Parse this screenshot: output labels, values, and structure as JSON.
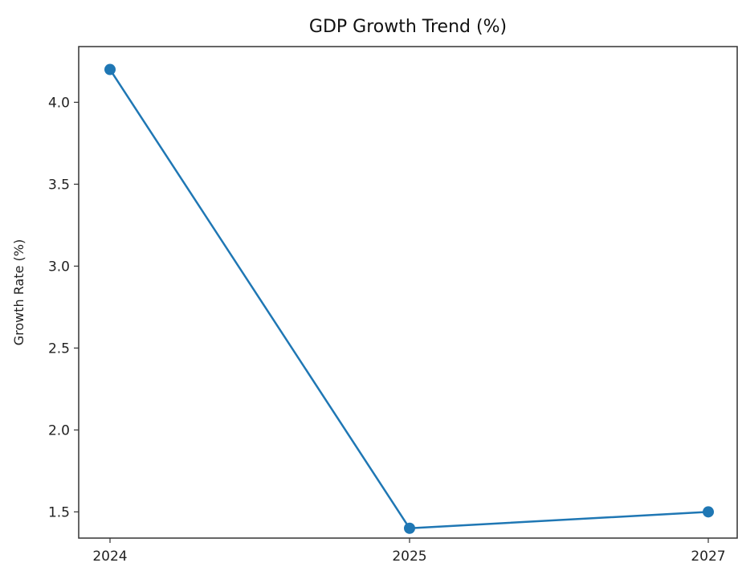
{
  "chart_data": {
    "type": "line",
    "title": "GDP Growth Trend (%)",
    "xlabel": "",
    "ylabel": "Growth Rate (%)",
    "categories": [
      "2024",
      "2025",
      "2027"
    ],
    "series": [
      {
        "values": [
          4.2,
          1.4,
          1.5
        ]
      }
    ],
    "ylim": [
      1.34,
      4.34
    ],
    "yticks": [
      "1.5",
      "2.0",
      "2.5",
      "3.0",
      "3.5",
      "4.0"
    ],
    "grid": false,
    "legend": "none",
    "colors": {
      "line": "#1f77b4",
      "axes": "#333333"
    }
  }
}
